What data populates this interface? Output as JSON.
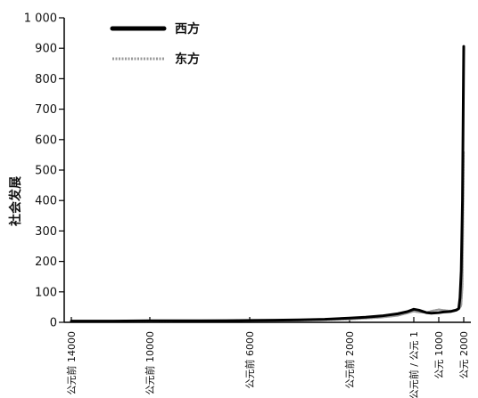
{
  "chart_data": {
    "type": "line",
    "ylabel": "社会发展",
    "ylim": [
      0,
      1000
    ],
    "yticks": [
      0,
      100,
      200,
      300,
      400,
      500,
      600,
      700,
      800,
      900,
      1000
    ],
    "ytick_labels": [
      "0",
      "100",
      "200",
      "300",
      "400",
      "500",
      "600",
      "700",
      "800",
      "900",
      "1 000"
    ],
    "xlim": [
      -14000,
      2000
    ],
    "xticks": [
      -14000,
      -10000,
      -6000,
      -2000,
      1,
      1000,
      2000
    ],
    "xtick_labels": [
      "公元前 14000",
      "公元前 10000",
      "公元前 6000",
      "公元前 2000",
      "公元前 / 公元 1",
      "公元 1000",
      "公元 2000"
    ],
    "legend_position": "top-left",
    "series": [
      {
        "name": "西方",
        "color": "#000000",
        "x": [
          -14000,
          -12000,
          -10000,
          -8000,
          -6000,
          -5000,
          -4000,
          -3000,
          -2000,
          -1500,
          -1000,
          -500,
          -200,
          1,
          200,
          500,
          700,
          1000,
          1200,
          1400,
          1500,
          1600,
          1700,
          1800,
          1850,
          1900,
          1950,
          2000
        ],
        "y": [
          4,
          4,
          5,
          5,
          6,
          7,
          8,
          10,
          14,
          17,
          21,
          28,
          35,
          43,
          40,
          32,
          30,
          32,
          34,
          35,
          36,
          38,
          40,
          45,
          80,
          170,
          400,
          906
        ]
      },
      {
        "name": "东方",
        "color": "#9a9a9a",
        "x": [
          -14000,
          -12000,
          -10000,
          -8000,
          -6000,
          -5000,
          -4000,
          -3000,
          -2000,
          -1500,
          -1000,
          -500,
          -200,
          1,
          200,
          500,
          700,
          1000,
          1200,
          1400,
          1500,
          1600,
          1700,
          1800,
          1850,
          1900,
          1950,
          2000
        ],
        "y": [
          4,
          4,
          4,
          5,
          5,
          6,
          7,
          8,
          10,
          13,
          16,
          22,
          30,
          36,
          33,
          32,
          37,
          42,
          40,
          38,
          38,
          40,
          42,
          44,
          48,
          55,
          120,
          560
        ]
      }
    ]
  }
}
